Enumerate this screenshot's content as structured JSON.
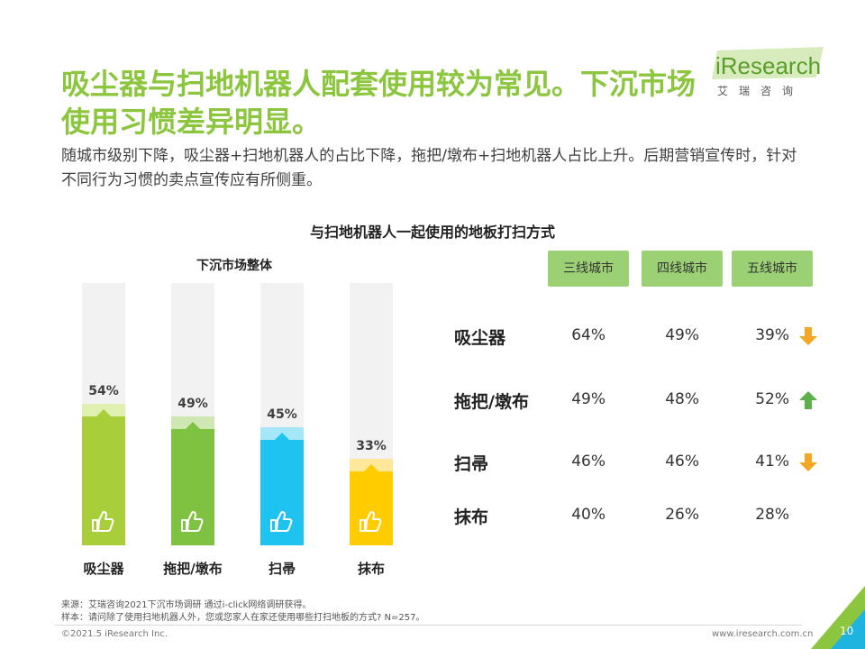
{
  "header": {
    "title_line1": "吸尘器与扫地机器人配套使用较为常见。下沉市场",
    "title_line2": "使用习惯差异明显。",
    "subtitle": "随城市级别下降，吸尘器+扫地机器人的占比下降，拖把/墩布+扫地机器人占比上升。后期营销宣传时，针对不同行为习惯的卖点宣传应有所侧重。"
  },
  "logo": {
    "word": "iResearch",
    "cn": "艾瑞咨询"
  },
  "chart_data": [
    {
      "type": "bar",
      "title": "下沉市场整体",
      "categories": [
        "吸尘器",
        "拖把/墩布",
        "扫帚",
        "抹布"
      ],
      "values": [
        54,
        49,
        45,
        33
      ],
      "value_labels": [
        "54%",
        "49%",
        "45%",
        "33%"
      ],
      "ylim": [
        0,
        100
      ],
      "colors": [
        "#a8cf3a",
        "#7fc241",
        "#1fc3f0",
        "#ffcc00"
      ],
      "cap_colors": [
        "#dff0b0",
        "#cfe8b3",
        "#a5e6f8",
        "#ffe89a"
      ]
    },
    {
      "type": "table",
      "title": "与扫地机器人一起使用的地板打扫方式",
      "columns": [
        "三线城市",
        "四线城市",
        "五线城市"
      ],
      "rows": [
        {
          "label": "吸尘器",
          "values": [
            "64%",
            "49%",
            "39%"
          ],
          "trend": "down"
        },
        {
          "label": "拖把/墩布",
          "values": [
            "49%",
            "48%",
            "52%"
          ],
          "trend": "up"
        },
        {
          "label": "扫帚",
          "values": [
            "46%",
            "46%",
            "41%"
          ],
          "trend": "down"
        },
        {
          "label": "抹布",
          "values": [
            "40%",
            "26%",
            "28%"
          ],
          "trend": "none"
        }
      ]
    }
  ],
  "colors": {
    "accent": "#8cc63f",
    "up": "#5cb04a",
    "down": "#f5a623"
  },
  "footer": {
    "source": "来源：艾瑞咨询2021下沉市场调研 通过i-click网络调研获得。",
    "sample": "样本：请问除了使用扫地机器人外，您或您家人在家还使用哪些打扫地板的方式? N=257。",
    "copyright": "©2021.5 iResearch Inc.",
    "site": "www.iresearch.com.cn",
    "page": "10"
  }
}
